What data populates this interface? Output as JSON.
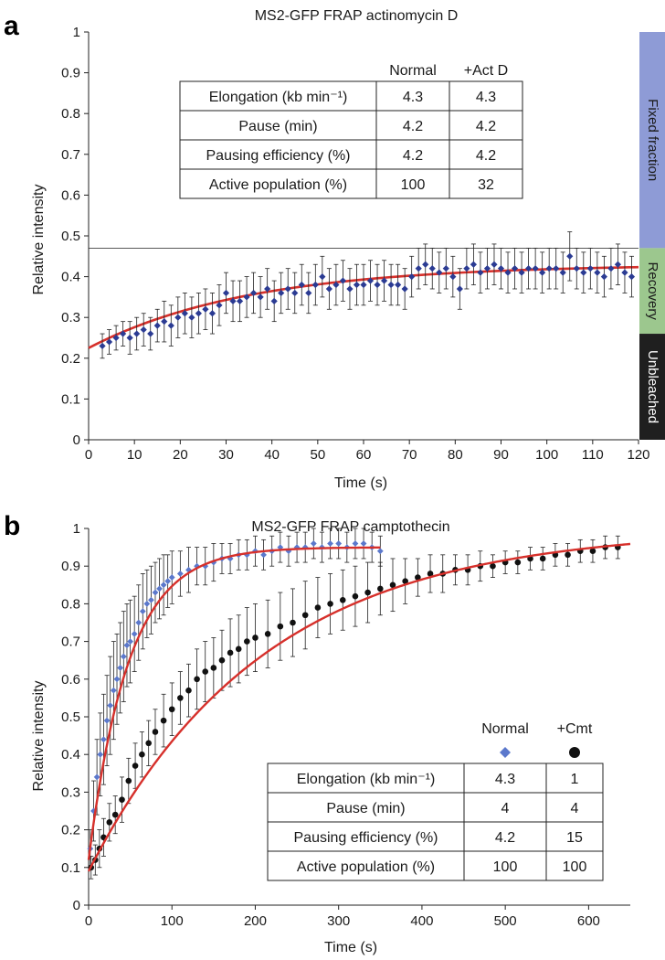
{
  "chart_data": [
    {
      "panel": "a",
      "type": "scatter",
      "title": "MS2-GFP FRAP actinomycin D",
      "xlabel": "Time (s)",
      "ylabel": "Relative intensity",
      "xlim": [
        0,
        120
      ],
      "ylim": [
        0,
        1
      ],
      "xticks": [
        "0",
        "10",
        "20",
        "30",
        "40",
        "50",
        "60",
        "70",
        "80",
        "90",
        "100",
        "110",
        "120"
      ],
      "yticks": [
        "0",
        "0.1",
        "0.2",
        "0.3",
        "0.4",
        "0.5",
        "0.6",
        "0.7",
        "0.8",
        "0.9",
        "1"
      ],
      "reference_line_y": 0.47,
      "series": [
        {
          "name": "+Act D",
          "marker": "diamond",
          "color": "#2b3b93",
          "x": [
            3,
            4.5,
            6,
            7.5,
            9,
            10.5,
            12,
            13.5,
            15,
            16.5,
            18,
            19.5,
            21,
            22.5,
            24,
            25.5,
            27,
            28.5,
            30,
            31.5,
            33,
            34.5,
            36,
            37.5,
            39,
            40.5,
            42,
            43.5,
            45,
            46.5,
            48,
            49.5,
            51,
            52.5,
            54,
            55.5,
            57,
            58.5,
            60,
            61.5,
            63,
            64.5,
            66,
            67.5,
            69,
            70.5,
            72,
            73.5,
            75,
            76.5,
            78,
            79.5,
            81,
            82.5,
            84,
            85.5,
            87,
            88.5,
            90,
            91.5,
            93,
            94.5,
            96,
            97.5,
            99,
            100.5,
            102,
            103.5,
            105,
            106.5,
            108,
            109.5,
            111,
            112.5,
            114,
            115.5,
            117,
            118.5
          ],
          "y": [
            0.23,
            0.24,
            0.25,
            0.26,
            0.25,
            0.26,
            0.27,
            0.26,
            0.28,
            0.29,
            0.28,
            0.3,
            0.31,
            0.3,
            0.31,
            0.32,
            0.31,
            0.33,
            0.36,
            0.34,
            0.34,
            0.35,
            0.36,
            0.35,
            0.37,
            0.34,
            0.36,
            0.37,
            0.36,
            0.38,
            0.36,
            0.38,
            0.4,
            0.37,
            0.38,
            0.39,
            0.37,
            0.38,
            0.38,
            0.39,
            0.38,
            0.39,
            0.38,
            0.38,
            0.37,
            0.4,
            0.42,
            0.43,
            0.42,
            0.41,
            0.42,
            0.4,
            0.37,
            0.42,
            0.43,
            0.41,
            0.42,
            0.43,
            0.42,
            0.41,
            0.42,
            0.41,
            0.42,
            0.42,
            0.41,
            0.42,
            0.42,
            0.41,
            0.45,
            0.42,
            0.41,
            0.42,
            0.41,
            0.4,
            0.42,
            0.43,
            0.41,
            0.4
          ],
          "err": [
            0.03,
            0.03,
            0.03,
            0.03,
            0.04,
            0.04,
            0.04,
            0.04,
            0.04,
            0.05,
            0.05,
            0.05,
            0.05,
            0.05,
            0.05,
            0.05,
            0.05,
            0.05,
            0.05,
            0.05,
            0.05,
            0.05,
            0.05,
            0.05,
            0.05,
            0.05,
            0.05,
            0.05,
            0.05,
            0.05,
            0.05,
            0.05,
            0.05,
            0.05,
            0.05,
            0.05,
            0.05,
            0.05,
            0.05,
            0.05,
            0.05,
            0.05,
            0.05,
            0.05,
            0.05,
            0.05,
            0.05,
            0.05,
            0.05,
            0.05,
            0.05,
            0.05,
            0.05,
            0.05,
            0.05,
            0.05,
            0.05,
            0.05,
            0.05,
            0.05,
            0.05,
            0.05,
            0.05,
            0.05,
            0.05,
            0.05,
            0.05,
            0.05,
            0.06,
            0.05,
            0.05,
            0.05,
            0.05,
            0.05,
            0.05,
            0.05,
            0.05,
            0.05
          ]
        },
        {
          "name": "fit",
          "type": "line",
          "color": "#d6302b",
          "model": {
            "kind": "exp_rise",
            "y0": 0.225,
            "yinf": 0.43,
            "tau": 35
          }
        }
      ],
      "bands": [
        {
          "label": "Fixed fraction",
          "from": 0.47,
          "to": 1.0,
          "color": "#8e9bd6",
          "text_color": "#1a1a1a"
        },
        {
          "label": "Recovery",
          "from": 0.26,
          "to": 0.47,
          "color": "#9cc78e",
          "text_color": "#1a1a1a"
        },
        {
          "label": "Unbleached",
          "from": 0,
          "to": 0.26,
          "color": "#1f1f1f",
          "text_color": "#ffffff"
        }
      ],
      "table": {
        "columns": [
          "Normal",
          "+Act D"
        ],
        "rows": [
          {
            "label": "Elongation (kb min⁻¹)",
            "values": [
              "4.3",
              "4.3"
            ]
          },
          {
            "label": "Pause (min)",
            "values": [
              "4.2",
              "4.2"
            ]
          },
          {
            "label": "Pausing efficiency (%)",
            "values": [
              "4.2",
              "4.2"
            ]
          },
          {
            "label": "Active population (%)",
            "values": [
              "100",
              "32"
            ]
          }
        ]
      }
    },
    {
      "panel": "b",
      "type": "scatter",
      "title": "MS2-GFP FRAP camptothecin",
      "xlabel": "Time (s)",
      "ylabel": "Relative intensity",
      "xlim": [
        0,
        650
      ],
      "ylim": [
        0,
        1
      ],
      "xticks": [
        "0",
        "100",
        "200",
        "300",
        "400",
        "500",
        "600"
      ],
      "xtick_values": [
        0,
        100,
        200,
        300,
        400,
        500,
        600
      ],
      "yticks": [
        "0",
        "0.1",
        "0.2",
        "0.3",
        "0.4",
        "0.5",
        "0.6",
        "0.7",
        "0.8",
        "0.9",
        "1"
      ],
      "series": [
        {
          "name": "Normal",
          "marker": "diamond",
          "color": "#5b78cc",
          "x": [
            2,
            6,
            10,
            14,
            18,
            22,
            26,
            30,
            34,
            38,
            42,
            46,
            50,
            55,
            60,
            65,
            70,
            75,
            80,
            85,
            90,
            95,
            100,
            110,
            120,
            130,
            140,
            150,
            160,
            170,
            180,
            190,
            200,
            210,
            220,
            230,
            240,
            250,
            260,
            270,
            280,
            290,
            300,
            310,
            320,
            330,
            340,
            350
          ],
          "y": [
            0.15,
            0.25,
            0.34,
            0.4,
            0.44,
            0.49,
            0.53,
            0.57,
            0.6,
            0.63,
            0.66,
            0.69,
            0.7,
            0.72,
            0.75,
            0.78,
            0.8,
            0.81,
            0.83,
            0.84,
            0.85,
            0.86,
            0.87,
            0.88,
            0.89,
            0.9,
            0.9,
            0.91,
            0.92,
            0.92,
            0.93,
            0.93,
            0.94,
            0.93,
            0.94,
            0.95,
            0.94,
            0.95,
            0.95,
            0.96,
            0.95,
            0.96,
            0.96,
            0.95,
            0.96,
            0.96,
            0.95,
            0.94
          ],
          "err": [
            0.05,
            0.08,
            0.1,
            0.11,
            0.12,
            0.12,
            0.13,
            0.13,
            0.12,
            0.12,
            0.12,
            0.11,
            0.11,
            0.1,
            0.1,
            0.1,
            0.09,
            0.09,
            0.08,
            0.08,
            0.08,
            0.07,
            0.07,
            0.06,
            0.06,
            0.05,
            0.05,
            0.05,
            0.04,
            0.04,
            0.04,
            0.04,
            0.04,
            0.04,
            0.04,
            0.04,
            0.04,
            0.04,
            0.04,
            0.04,
            0.04,
            0.04,
            0.04,
            0.04,
            0.04,
            0.04,
            0.04,
            0.04
          ]
        },
        {
          "name": "+Cmt",
          "marker": "circle",
          "color": "#111111",
          "x": [
            3,
            8,
            13,
            18,
            25,
            32,
            40,
            48,
            56,
            64,
            72,
            80,
            90,
            100,
            110,
            120,
            130,
            140,
            150,
            160,
            170,
            180,
            190,
            200,
            215,
            230,
            245,
            260,
            275,
            290,
            305,
            320,
            335,
            350,
            365,
            380,
            395,
            410,
            425,
            440,
            455,
            470,
            485,
            500,
            515,
            530,
            545,
            560,
            575,
            590,
            605,
            620,
            635
          ],
          "y": [
            0.1,
            0.12,
            0.15,
            0.18,
            0.22,
            0.24,
            0.28,
            0.33,
            0.37,
            0.4,
            0.43,
            0.46,
            0.49,
            0.52,
            0.55,
            0.57,
            0.6,
            0.62,
            0.63,
            0.65,
            0.67,
            0.68,
            0.7,
            0.71,
            0.72,
            0.74,
            0.75,
            0.77,
            0.79,
            0.8,
            0.81,
            0.82,
            0.83,
            0.84,
            0.85,
            0.86,
            0.87,
            0.88,
            0.88,
            0.89,
            0.89,
            0.9,
            0.9,
            0.91,
            0.91,
            0.92,
            0.92,
            0.93,
            0.93,
            0.94,
            0.94,
            0.95,
            0.95
          ],
          "err": [
            0.03,
            0.04,
            0.05,
            0.05,
            0.05,
            0.05,
            0.06,
            0.06,
            0.06,
            0.06,
            0.06,
            0.06,
            0.07,
            0.07,
            0.07,
            0.07,
            0.08,
            0.08,
            0.08,
            0.08,
            0.09,
            0.09,
            0.09,
            0.09,
            0.09,
            0.09,
            0.09,
            0.09,
            0.08,
            0.08,
            0.08,
            0.08,
            0.08,
            0.07,
            0.07,
            0.06,
            0.05,
            0.05,
            0.05,
            0.04,
            0.04,
            0.04,
            0.03,
            0.03,
            0.03,
            0.03,
            0.03,
            0.03,
            0.03,
            0.03,
            0.03,
            0.03,
            0.03
          ]
        },
        {
          "name": "Normal fit",
          "type": "line",
          "color": "#d6302b",
          "model": {
            "kind": "exp_rise",
            "y0": 0.12,
            "yinf": 0.95,
            "tau": 48,
            "xmax": 350
          }
        },
        {
          "name": "+Cmt fit",
          "type": "line",
          "color": "#d6302b",
          "model": {
            "kind": "exp_rise",
            "y0": 0.09,
            "yinf": 1.0,
            "tau": 210,
            "xmax": 650
          }
        }
      ],
      "table": {
        "columns": [
          "Normal",
          "+Cmt"
        ],
        "rows": [
          {
            "label": "Elongation (kb min⁻¹)",
            "values": [
              "4.3",
              "1"
            ]
          },
          {
            "label": "Pause (min)",
            "values": [
              "4",
              "4"
            ]
          },
          {
            "label": "Pausing efficiency (%)",
            "values": [
              "4.2",
              "15"
            ]
          },
          {
            "label": "Active population (%)",
            "values": [
              "100",
              "100"
            ]
          }
        ]
      }
    }
  ]
}
